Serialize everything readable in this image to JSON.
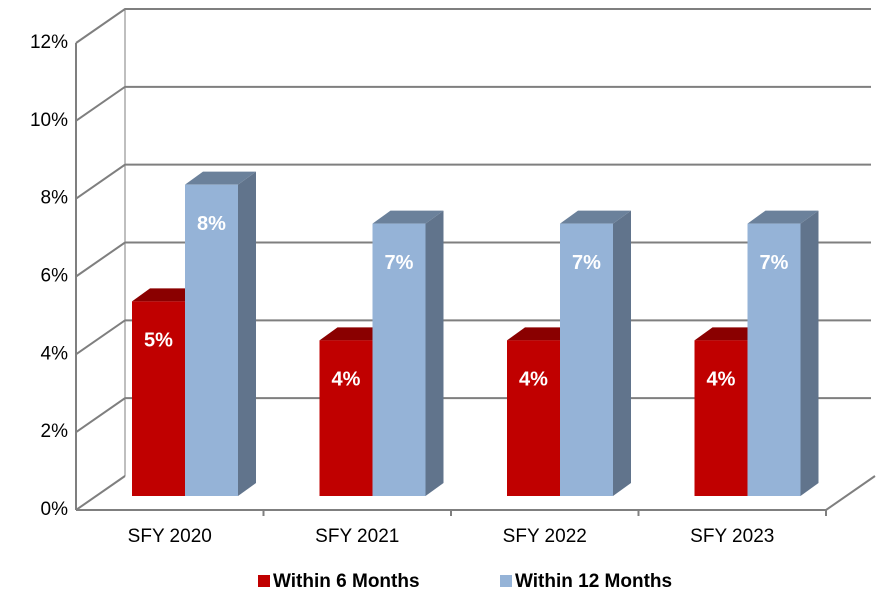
{
  "chart_data": {
    "type": "bar3d",
    "categories": [
      "SFY 2020",
      "SFY 2021",
      "SFY 2022",
      "SFY 2023"
    ],
    "series": [
      {
        "name": "Within 6 Months",
        "color": "#c00000",
        "values": [
          5,
          4,
          4,
          4
        ],
        "value_labels": [
          "5%",
          "4%",
          "4%",
          "4%"
        ]
      },
      {
        "name": "Within 12 Months",
        "color": "#95b3d7",
        "values": [
          8,
          7,
          7,
          7
        ],
        "value_labels": [
          "8%",
          "7%",
          "7%",
          "7%"
        ]
      }
    ],
    "ylim": [
      0,
      12
    ],
    "yticks": [
      {
        "value": 0,
        "label": "0%"
      },
      {
        "value": 2,
        "label": "2%"
      },
      {
        "value": 4,
        "label": "4%"
      },
      {
        "value": 6,
        "label": "6%"
      },
      {
        "value": 8,
        "label": "8%"
      },
      {
        "value": 10,
        "label": "10%"
      },
      {
        "value": 12,
        "label": "12%"
      }
    ],
    "grid": true,
    "legend": "bottom"
  }
}
